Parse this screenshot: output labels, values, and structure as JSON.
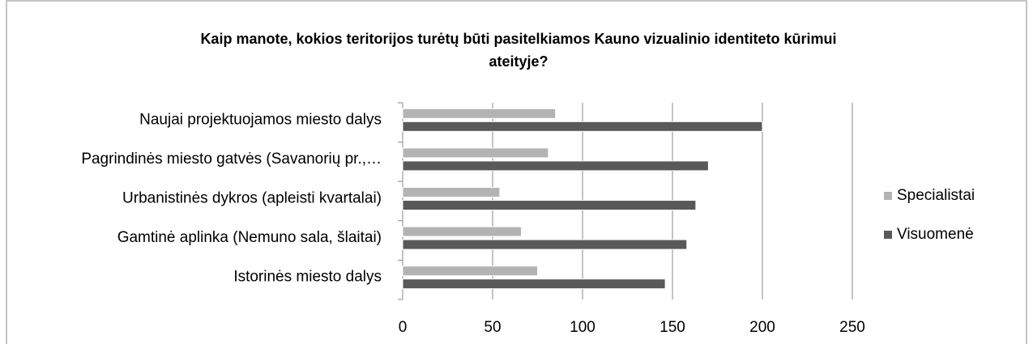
{
  "chart_data": {
    "type": "hbar",
    "title": "Kaip manote, kokios teritorijos turėtų būti pasitelkiamos Kauno vizualinio identiteto kūrimui ateityje?",
    "categories": [
      "Naujai projektuojamos miesto dalys",
      "Pagrindinės miesto gatvės (Savanorių pr.,…",
      "Urbanistinės dykros (apleisti kvartalai)",
      "Gamtinė aplinka (Nemuno sala, šlaitai)",
      "Istorinės miesto dalys"
    ],
    "series": [
      {
        "name": "Specialistai",
        "color": "#b3b3b3",
        "values": [
          85,
          81,
          54,
          66,
          75
        ]
      },
      {
        "name": "Visuomenė",
        "color": "#595959",
        "values": [
          200,
          170,
          163,
          158,
          146
        ]
      }
    ],
    "xlim": [
      0,
      250
    ],
    "xticks": [
      0,
      50,
      100,
      150,
      200,
      250
    ],
    "grid": true,
    "legend": "right"
  }
}
